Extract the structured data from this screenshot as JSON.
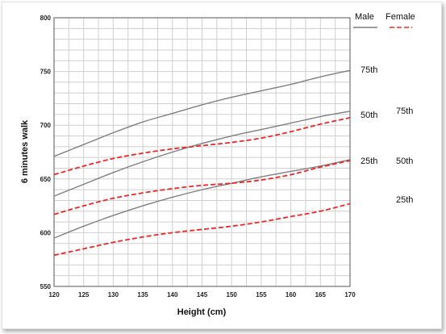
{
  "chart_data": {
    "type": "line",
    "title": "",
    "xlabel": "Height (cm)",
    "ylabel": "6 minutes walk",
    "xlim": [
      120,
      170
    ],
    "ylim": [
      550,
      800
    ],
    "x_ticks": [
      120,
      125,
      130,
      135,
      140,
      145,
      150,
      155,
      160,
      165,
      170
    ],
    "y_ticks": [
      550,
      600,
      650,
      700,
      750,
      800
    ],
    "grid": true,
    "x": [
      120,
      125,
      130,
      135,
      140,
      145,
      150,
      155,
      160,
      165,
      170
    ],
    "legend": {
      "placement": "top-right",
      "entries": [
        {
          "name": "Male",
          "color": "#7f7f7f",
          "style": "solid"
        },
        {
          "name": "Female",
          "color": "#e8292b",
          "style": "dashed"
        }
      ]
    },
    "series": [
      {
        "name": "Male",
        "label": "75th",
        "color": "#7f7f7f",
        "style": "solid",
        "values": [
          671,
          682,
          693,
          703,
          711,
          719,
          726,
          732,
          738,
          745,
          751
        ]
      },
      {
        "name": "Male",
        "label": "50th",
        "color": "#7f7f7f",
        "style": "solid",
        "values": [
          634,
          645,
          656,
          666,
          675,
          683,
          690,
          696,
          702,
          708,
          713
        ]
      },
      {
        "name": "Male",
        "label": "25th",
        "color": "#7f7f7f",
        "style": "solid",
        "values": [
          595,
          606,
          616,
          625,
          633,
          640,
          646,
          652,
          657,
          662,
          668
        ]
      },
      {
        "name": "Female",
        "label": "75th",
        "color": "#e8292b",
        "style": "dashed",
        "values": [
          654,
          662,
          669,
          674,
          678,
          681,
          684,
          688,
          694,
          701,
          707
        ]
      },
      {
        "name": "Female",
        "label": "50th",
        "color": "#e8292b",
        "style": "dashed",
        "values": [
          617,
          625,
          632,
          637,
          641,
          644,
          646,
          649,
          654,
          661,
          667
        ]
      },
      {
        "name": "Female",
        "label": "25th",
        "color": "#e8292b",
        "style": "dashed",
        "values": [
          579,
          585,
          591,
          596,
          600,
          603,
          606,
          610,
          615,
          620,
          627
        ]
      }
    ],
    "percentile_labels": {
      "male": [
        "75th",
        "50th",
        "25th"
      ],
      "female": [
        "75th",
        "50th",
        "25th"
      ]
    }
  }
}
